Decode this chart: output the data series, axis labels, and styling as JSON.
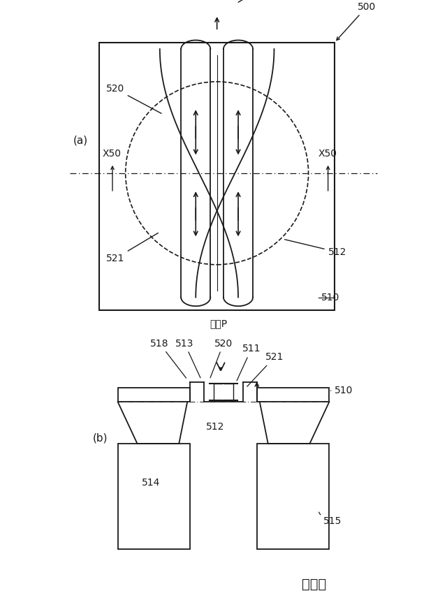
{
  "bg_color": "#ffffff",
  "line_color": "#1a1a1a",
  "fig_label": "図５０",
  "panel_a_label": "(a)",
  "panel_b_label": "(b)",
  "ref_500": "500",
  "ref_510": "510",
  "ref_511": "511",
  "ref_512": "512",
  "ref_513": "513",
  "ref_514": "514",
  "ref_515": "515",
  "ref_518": "518",
  "ref_520": "520",
  "ref_521": "521",
  "ref_X50_left": "X50",
  "ref_X50_right": "X50",
  "ref_pressure": "圧力P"
}
